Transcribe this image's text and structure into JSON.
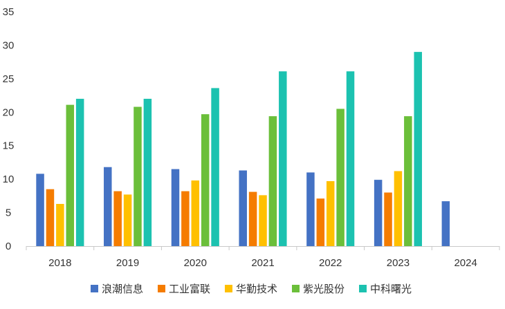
{
  "chart_data": {
    "type": "bar",
    "title": "",
    "xlabel": "",
    "ylabel": "",
    "categories": [
      "2018",
      "2019",
      "2020",
      "2021",
      "2022",
      "2023",
      "2024"
    ],
    "ylim": [
      0,
      35
    ],
    "yticks": [
      "0",
      "5",
      "10",
      "15",
      "20",
      "25",
      "30",
      "35"
    ],
    "grid": false,
    "legend_position": "bottom",
    "series": [
      {
        "name": "浪潮信息",
        "color": "#4472c4",
        "values": [
          10.8,
          11.8,
          11.5,
          11.3,
          11.0,
          9.9,
          6.7
        ]
      },
      {
        "name": "工业富联",
        "color": "#f57c00",
        "values": [
          8.5,
          8.2,
          8.2,
          8.1,
          7.1,
          8.0,
          null
        ]
      },
      {
        "name": "华勤技术",
        "color": "#ffc000",
        "values": [
          6.3,
          7.7,
          9.8,
          7.6,
          9.7,
          11.2,
          null
        ]
      },
      {
        "name": "紫光股份",
        "color": "#6bbf3a",
        "values": [
          21.1,
          20.8,
          19.7,
          19.4,
          20.5,
          19.4,
          null
        ]
      },
      {
        "name": "中科曙光",
        "color": "#1cc2b0",
        "values": [
          22.0,
          22.0,
          23.6,
          26.1,
          26.1,
          29.0,
          null
        ]
      }
    ]
  }
}
